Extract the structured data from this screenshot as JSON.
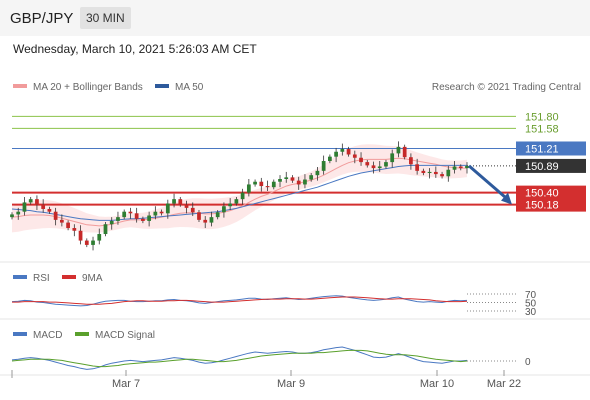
{
  "header": {
    "symbol": "GBP/JPY",
    "timeframe": "30 MIN",
    "datetime": "Wednesday, March 10, 2021 5:26:03 AM CET"
  },
  "legend": {
    "ma20_bb": "MA 20 + Bollinger Bands",
    "ma50": "MA 50",
    "credit": "Research © 2021 Trading Central",
    "rsi": "RSI",
    "rsi_ma": "9MA",
    "macd": "MACD",
    "macd_signal": "MACD Signal"
  },
  "colors": {
    "resistance": "#8bc34a",
    "pivot": "#4a78c2",
    "support": "#d32f2f",
    "current": "#333333",
    "candle_up": "#2e7d32",
    "candle_down": "#c62828",
    "bollinger": "#fde2e2",
    "ma20": "#f19b9b",
    "ma50": "#4a78c2"
  },
  "chart_data": [
    {
      "type": "candlestick",
      "title": "GBP/JPY",
      "interval": "30 MIN",
      "ylim": [
        149.2,
        152.1
      ],
      "x_ticks": [
        "Mar 7",
        "Mar 9",
        "Mar 10",
        "Mar 22"
      ],
      "levels": [
        {
          "value": 151.8,
          "label": "151.80",
          "kind": "resistance"
        },
        {
          "value": 151.58,
          "label": "151.58",
          "kind": "resistance"
        },
        {
          "value": 151.21,
          "label": "151.21",
          "kind": "pivot"
        },
        {
          "value": 150.89,
          "label": "150.89",
          "kind": "current"
        },
        {
          "value": 150.4,
          "label": "150.40",
          "kind": "support"
        },
        {
          "value": 150.18,
          "label": "150.18",
          "kind": "support"
        }
      ],
      "forecast": {
        "from": 150.89,
        "to": 150.18,
        "direction": "down"
      },
      "close": [
        150.0,
        150.05,
        150.22,
        150.28,
        150.18,
        150.1,
        150.05,
        149.9,
        149.85,
        149.75,
        149.7,
        149.52,
        149.44,
        149.52,
        149.64,
        149.82,
        149.88,
        149.95,
        150.05,
        150.02,
        149.92,
        149.88,
        149.98,
        150.05,
        150.02,
        150.2,
        150.28,
        150.18,
        150.12,
        150.04,
        149.9,
        149.85,
        149.95,
        150.04,
        150.15,
        150.2,
        150.28,
        150.4,
        150.55,
        150.6,
        150.52,
        150.5,
        150.6,
        150.65,
        150.68,
        150.62,
        150.55,
        150.64,
        150.72,
        150.8,
        150.98,
        151.06,
        151.15,
        151.2,
        151.1,
        151.04,
        150.96,
        150.9,
        150.85,
        150.88,
        150.96,
        151.12,
        151.24,
        151.05,
        150.92,
        150.8,
        150.76,
        150.78,
        150.74,
        150.7,
        150.82,
        150.88,
        150.85,
        150.89
      ],
      "ma20": [
        149.95,
        149.96,
        149.98,
        149.99,
        149.99,
        149.99,
        149.98,
        149.96,
        149.93,
        149.9,
        149.87,
        149.84,
        149.81,
        149.8,
        149.79,
        149.8,
        149.82,
        149.85,
        149.88,
        149.9,
        149.9,
        149.9,
        149.91,
        149.93,
        149.95,
        149.97,
        150.0,
        150.02,
        150.03,
        150.03,
        150.02,
        150.01,
        150.01,
        150.02,
        150.04,
        150.07,
        150.11,
        150.16,
        150.22,
        150.28,
        150.33,
        150.37,
        150.42,
        150.47,
        150.52,
        150.55,
        150.57,
        150.6,
        150.63,
        150.67,
        150.72,
        150.78,
        150.84,
        150.9,
        150.95,
        150.98,
        151.0,
        151.01,
        151.01,
        151.01,
        151.01,
        151.02,
        151.03,
        151.02,
        151.0,
        150.98,
        150.96,
        150.94,
        150.92,
        150.89,
        150.87,
        150.86,
        150.85,
        150.85
      ],
      "ma50": [
        150.1,
        150.09,
        150.08,
        150.07,
        150.05,
        150.04,
        150.02,
        150.0,
        149.98,
        149.96,
        149.94,
        149.92,
        149.91,
        149.9,
        149.89,
        149.89,
        149.89,
        149.9,
        149.91,
        149.92,
        149.92,
        149.93,
        149.94,
        149.95,
        149.96,
        149.97,
        149.98,
        149.99,
        150.0,
        150.01,
        150.02,
        150.03,
        150.04,
        150.05,
        150.07,
        150.09,
        150.11,
        150.14,
        150.17,
        150.2,
        150.23,
        150.26,
        150.29,
        150.32,
        150.35,
        150.38,
        150.41,
        150.44,
        150.47,
        150.5,
        150.54,
        150.58,
        150.62,
        150.66,
        150.7,
        150.73,
        150.76,
        150.78,
        150.8,
        150.82,
        150.84,
        150.86,
        150.88,
        150.89,
        150.9,
        150.9,
        150.9,
        150.9,
        150.9,
        150.9,
        150.9,
        150.9,
        150.9,
        150.9
      ]
    },
    {
      "type": "line",
      "title": "RSI",
      "levels": [
        70,
        50,
        30
      ],
      "series": [
        {
          "name": "RSI",
          "values": [
            52,
            53,
            55,
            54,
            51,
            50,
            48,
            46,
            45,
            44,
            43,
            42,
            43,
            46,
            50,
            53,
            54,
            55,
            55,
            53,
            52,
            52,
            53,
            54,
            54,
            56,
            57,
            55,
            54,
            52,
            49,
            48,
            50,
            52,
            54,
            55,
            56,
            58,
            60,
            60,
            58,
            57,
            59,
            60,
            61,
            59,
            57,
            58,
            60,
            62,
            64,
            65,
            66,
            65,
            62,
            60,
            58,
            56,
            55,
            56,
            58,
            61,
            63,
            58,
            55,
            52,
            51,
            52,
            51,
            50,
            53,
            55,
            54,
            55
          ]
        },
        {
          "name": "9MA",
          "values": [
            51,
            51,
            52,
            52,
            52,
            52,
            51,
            51,
            50,
            49,
            48,
            47,
            46,
            46,
            46,
            47,
            48,
            50,
            52,
            53,
            54,
            54,
            53,
            53,
            53,
            54,
            54,
            55,
            55,
            54,
            53,
            52,
            51,
            51,
            51,
            52,
            53,
            54,
            55,
            56,
            57,
            58,
            58,
            58,
            59,
            59,
            59,
            58,
            58,
            59,
            60,
            61,
            62,
            63,
            63,
            63,
            62,
            61,
            60,
            59,
            58,
            58,
            59,
            59,
            59,
            58,
            57,
            56,
            54,
            53,
            52,
            52,
            52,
            53
          ]
        }
      ]
    },
    {
      "type": "line",
      "title": "MACD",
      "levels": [
        0
      ],
      "series": [
        {
          "name": "MACD",
          "values": [
            0.02,
            0.03,
            0.05,
            0.06,
            0.05,
            0.03,
            0.01,
            -0.02,
            -0.05,
            -0.08,
            -0.1,
            -0.13,
            -0.15,
            -0.14,
            -0.11,
            -0.07,
            -0.04,
            -0.02,
            0.0,
            0.01,
            0.0,
            -0.01,
            0.0,
            0.01,
            0.02,
            0.04,
            0.06,
            0.05,
            0.03,
            0.01,
            -0.02,
            -0.04,
            -0.03,
            -0.01,
            0.02,
            0.05,
            0.08,
            0.11,
            0.14,
            0.16,
            0.15,
            0.14,
            0.15,
            0.16,
            0.17,
            0.16,
            0.14,
            0.14,
            0.15,
            0.17,
            0.2,
            0.22,
            0.24,
            0.25,
            0.22,
            0.19,
            0.15,
            0.11,
            0.07,
            0.06,
            0.07,
            0.1,
            0.13,
            0.1,
            0.06,
            0.02,
            -0.01,
            -0.02,
            -0.03,
            -0.04,
            -0.02,
            0.0,
            0.0,
            0.01
          ]
        },
        {
          "name": "MACD Signal",
          "values": [
            0.0,
            0.01,
            0.02,
            0.03,
            0.03,
            0.03,
            0.03,
            0.02,
            0.01,
            -0.01,
            -0.03,
            -0.05,
            -0.07,
            -0.09,
            -0.1,
            -0.1,
            -0.09,
            -0.08,
            -0.06,
            -0.05,
            -0.04,
            -0.03,
            -0.02,
            -0.02,
            -0.01,
            0.0,
            0.01,
            0.02,
            0.03,
            0.03,
            0.02,
            0.01,
            0.0,
            -0.01,
            -0.01,
            0.0,
            0.01,
            0.03,
            0.05,
            0.07,
            0.09,
            0.1,
            0.11,
            0.12,
            0.13,
            0.14,
            0.14,
            0.14,
            0.14,
            0.15,
            0.15,
            0.16,
            0.17,
            0.18,
            0.19,
            0.19,
            0.19,
            0.18,
            0.16,
            0.14,
            0.12,
            0.11,
            0.11,
            0.11,
            0.1,
            0.09,
            0.07,
            0.05,
            0.03,
            0.02,
            0.01,
            0.0,
            -0.01,
            0.0
          ]
        }
      ]
    }
  ]
}
